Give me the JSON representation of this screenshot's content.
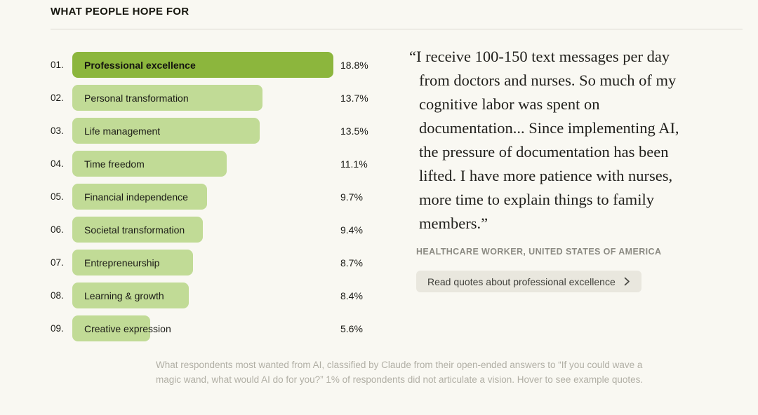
{
  "title": "WHAT PEOPLE HOPE FOR",
  "chart_data": {
    "type": "bar",
    "orientation": "horizontal",
    "title": "WHAT PEOPLE HOPE FOR",
    "ranks": [
      "01.",
      "02.",
      "03.",
      "04.",
      "05.",
      "06.",
      "07.",
      "08.",
      "09."
    ],
    "categories": [
      "Professional excellence",
      "Personal transformation",
      "Life management",
      "Time freedom",
      "Financial independence",
      "Societal transformation",
      "Entrepreneurship",
      "Learning & growth",
      "Creative expression"
    ],
    "values": [
      18.8,
      13.7,
      13.5,
      11.1,
      9.7,
      9.4,
      8.7,
      8.4,
      5.6
    ],
    "value_labels": [
      "18.8%",
      "13.7%",
      "13.5%",
      "11.1%",
      "9.7%",
      "9.4%",
      "8.7%",
      "8.4%",
      "5.6%"
    ],
    "xlim": [
      0,
      18.8
    ],
    "highlight_index": 0,
    "bar_color": "#C1DB96",
    "bar_color_highlight": "#8CB63D",
    "grid": false,
    "legend": false
  },
  "quote": {
    "text": "“I receive 100-150 text messages per day from doctors and nurses. So much of my cognitive labor was spent on documentation... Since implementing AI, the pressure of documentation has been lifted. I have more patience with nurses, more time to explain things to family members.”",
    "attribution": "HEALTHCARE WORKER, UNITED STATES OF AMERICA",
    "button_label": "Read quotes about professional excellence"
  },
  "icons": {
    "button_chevron": "chevron-right"
  },
  "footnote": "What respondents most wanted from AI, classified by Claude from their open-ended answers to “If you could wave a magic wand, what would AI do for you?” 1% of respondents did not articulate a vision. Hover to see example quotes."
}
